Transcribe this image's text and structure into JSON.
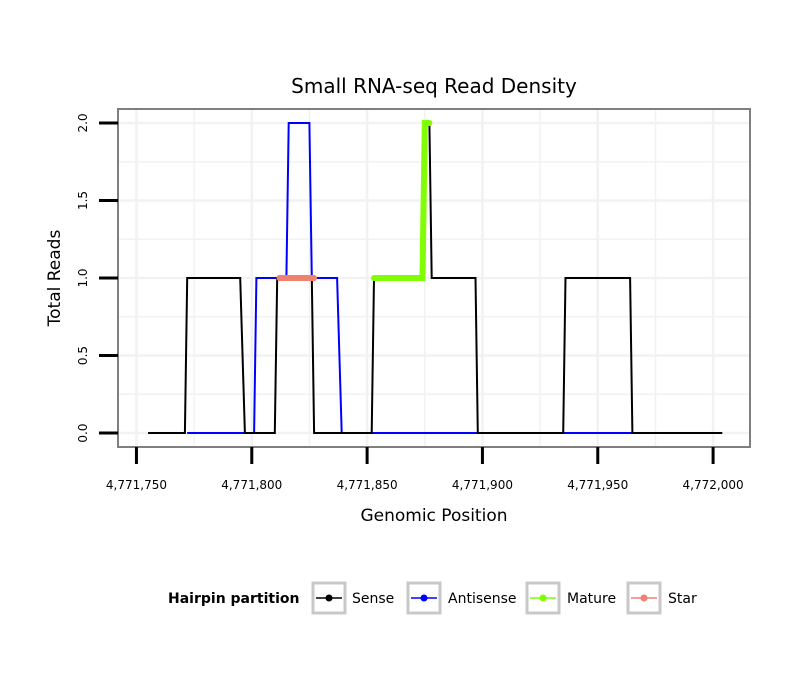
{
  "chart_data": {
    "type": "line",
    "title": "Small RNA-seq Read Density",
    "xlabel": "Genomic Position",
    "ylabel": "Total Reads",
    "xlim": [
      4771742,
      4772016
    ],
    "ylim": [
      -0.09,
      2.09
    ],
    "x_ticks": [
      4771750,
      4771800,
      4771850,
      4771900,
      4771950,
      4772000
    ],
    "x_tick_labels": [
      "4,771,750",
      "4,771,800",
      "4,771,850",
      "4,771,900",
      "4,771,950",
      "4,772,000"
    ],
    "y_ticks": [
      0,
      0.5,
      1,
      1.5,
      2
    ],
    "y_tick_labels": [
      "0.0",
      "0.5",
      "1.0",
      "1.5",
      "2.0"
    ],
    "grid": true,
    "legend": {
      "title": "Hairpin partition",
      "position": "bottom",
      "entries": [
        "Sense",
        "Antisense",
        "Mature",
        "Star"
      ]
    },
    "series": [
      {
        "name": "Sense",
        "color": "#000000",
        "x": [
          4771755,
          4771771,
          4771772,
          4771795,
          4771797,
          4771810,
          4771811,
          4771826,
          4771827,
          4771852,
          4771853,
          4771874,
          4771875,
          4771877,
          4771878,
          4771897,
          4771898,
          4771935,
          4771936,
          4771964,
          4771965,
          4772004
        ],
        "y": [
          0,
          0,
          1,
          1,
          0,
          0,
          1,
          1,
          0,
          0,
          1,
          1,
          2,
          2,
          1,
          1,
          0,
          0,
          1,
          1,
          0,
          0
        ]
      },
      {
        "name": "Antisense",
        "color": "#0000ff",
        "x": [
          4771772,
          4771801,
          4771802,
          4771815,
          4771816,
          4771825,
          4771826,
          4771837,
          4771839,
          4771965
        ],
        "y": [
          0,
          0,
          1,
          1,
          2,
          2,
          1,
          1,
          0,
          0
        ]
      },
      {
        "name": "Mature",
        "color": "#7fff00",
        "x": [
          4771853,
          4771874,
          4771875,
          4771877
        ],
        "y": [
          1,
          1,
          2,
          2
        ]
      },
      {
        "name": "Star",
        "color": "#f08070",
        "x": [
          4771812,
          4771827
        ],
        "y": [
          1,
          1
        ]
      }
    ]
  }
}
